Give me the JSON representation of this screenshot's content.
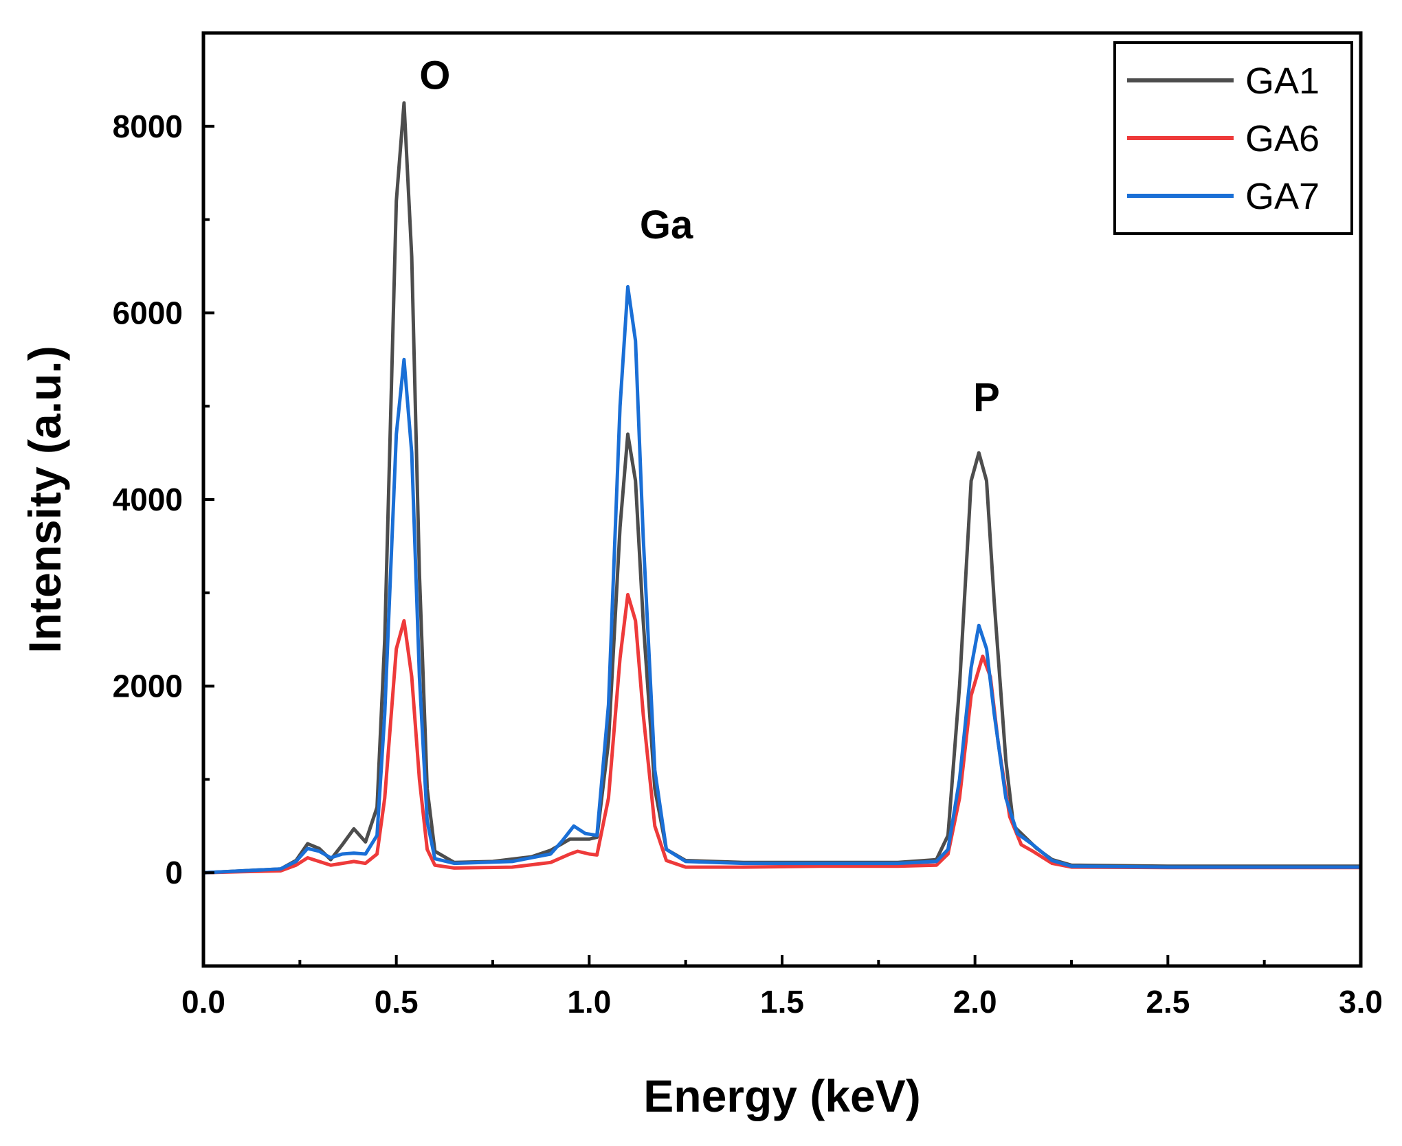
{
  "chart_data": {
    "type": "line",
    "title": "",
    "xlabel": "Energy (keV)",
    "ylabel": "Intensity (a.u.)",
    "xlim": [
      0,
      3.0
    ],
    "ylim": [
      -1000,
      9000
    ],
    "xticks": [
      0.0,
      0.5,
      1.0,
      1.5,
      2.0,
      2.5,
      3.0
    ],
    "xtick_labels": [
      "0.0",
      "0.5",
      "1.0",
      "1.5",
      "2.0",
      "2.5",
      "3.0"
    ],
    "yticks": [
      0,
      2000,
      4000,
      6000,
      8000
    ],
    "ytick_labels": [
      "0",
      "2000",
      "4000",
      "6000",
      "8000"
    ],
    "grid": false,
    "legend": {
      "position": "top-right",
      "entries": [
        "GA1",
        "GA6",
        "GA7"
      ]
    },
    "annotations": [
      {
        "text": "O",
        "x": 0.6,
        "y": 8400
      },
      {
        "text": "Ga",
        "x": 1.2,
        "y": 6800
      },
      {
        "text": "P",
        "x": 2.03,
        "y": 4950
      }
    ],
    "series": [
      {
        "name": "GA1",
        "color": "#4d4d4d",
        "points": [
          [
            0.0,
            0
          ],
          [
            0.1,
            20
          ],
          [
            0.2,
            40
          ],
          [
            0.24,
            130
          ],
          [
            0.27,
            310
          ],
          [
            0.3,
            260
          ],
          [
            0.33,
            140
          ],
          [
            0.36,
            300
          ],
          [
            0.39,
            470
          ],
          [
            0.42,
            330
          ],
          [
            0.45,
            700
          ],
          [
            0.47,
            2500
          ],
          [
            0.5,
            7200
          ],
          [
            0.52,
            8250
          ],
          [
            0.54,
            6600
          ],
          [
            0.56,
            3200
          ],
          [
            0.58,
            900
          ],
          [
            0.6,
            230
          ],
          [
            0.65,
            110
          ],
          [
            0.75,
            120
          ],
          [
            0.85,
            170
          ],
          [
            0.9,
            240
          ],
          [
            0.95,
            360
          ],
          [
            1.0,
            360
          ],
          [
            1.02,
            380
          ],
          [
            1.05,
            1400
          ],
          [
            1.08,
            3700
          ],
          [
            1.1,
            4700
          ],
          [
            1.12,
            4200
          ],
          [
            1.14,
            2700
          ],
          [
            1.17,
            900
          ],
          [
            1.2,
            250
          ],
          [
            1.25,
            130
          ],
          [
            1.4,
            110
          ],
          [
            1.6,
            110
          ],
          [
            1.8,
            110
          ],
          [
            1.9,
            140
          ],
          [
            1.93,
            400
          ],
          [
            1.96,
            2000
          ],
          [
            1.99,
            4200
          ],
          [
            2.01,
            4500
          ],
          [
            2.03,
            4200
          ],
          [
            2.05,
            2900
          ],
          [
            2.08,
            1200
          ],
          [
            2.1,
            500
          ],
          [
            2.13,
            380
          ],
          [
            2.16,
            260
          ],
          [
            2.2,
            140
          ],
          [
            2.25,
            80
          ],
          [
            2.5,
            70
          ],
          [
            2.75,
            70
          ],
          [
            3.0,
            70
          ]
        ]
      },
      {
        "name": "GA6",
        "color": "#ee3a3a",
        "points": [
          [
            0.0,
            0
          ],
          [
            0.1,
            10
          ],
          [
            0.2,
            20
          ],
          [
            0.24,
            80
          ],
          [
            0.27,
            160
          ],
          [
            0.3,
            120
          ],
          [
            0.33,
            80
          ],
          [
            0.36,
            100
          ],
          [
            0.39,
            120
          ],
          [
            0.42,
            100
          ],
          [
            0.45,
            200
          ],
          [
            0.47,
            800
          ],
          [
            0.5,
            2400
          ],
          [
            0.52,
            2700
          ],
          [
            0.54,
            2100
          ],
          [
            0.56,
            1000
          ],
          [
            0.58,
            250
          ],
          [
            0.6,
            80
          ],
          [
            0.65,
            50
          ],
          [
            0.8,
            60
          ],
          [
            0.9,
            110
          ],
          [
            0.95,
            200
          ],
          [
            0.97,
            230
          ],
          [
            1.0,
            200
          ],
          [
            1.02,
            190
          ],
          [
            1.05,
            800
          ],
          [
            1.08,
            2300
          ],
          [
            1.1,
            2980
          ],
          [
            1.12,
            2700
          ],
          [
            1.14,
            1700
          ],
          [
            1.17,
            500
          ],
          [
            1.2,
            130
          ],
          [
            1.25,
            60
          ],
          [
            1.4,
            60
          ],
          [
            1.6,
            70
          ],
          [
            1.8,
            70
          ],
          [
            1.9,
            80
          ],
          [
            1.93,
            200
          ],
          [
            1.96,
            800
          ],
          [
            1.99,
            1900
          ],
          [
            2.02,
            2320
          ],
          [
            2.04,
            2100
          ],
          [
            2.06,
            1400
          ],
          [
            2.09,
            600
          ],
          [
            2.12,
            300
          ],
          [
            2.15,
            230
          ],
          [
            2.2,
            100
          ],
          [
            2.25,
            60
          ],
          [
            2.5,
            55
          ],
          [
            2.75,
            55
          ],
          [
            3.0,
            55
          ]
        ]
      },
      {
        "name": "GA7",
        "color": "#1a6fd6",
        "points": [
          [
            0.0,
            0
          ],
          [
            0.1,
            20
          ],
          [
            0.2,
            40
          ],
          [
            0.24,
            120
          ],
          [
            0.27,
            260
          ],
          [
            0.3,
            230
          ],
          [
            0.33,
            160
          ],
          [
            0.36,
            200
          ],
          [
            0.39,
            210
          ],
          [
            0.42,
            200
          ],
          [
            0.45,
            400
          ],
          [
            0.47,
            1700
          ],
          [
            0.5,
            4700
          ],
          [
            0.52,
            5500
          ],
          [
            0.54,
            4500
          ],
          [
            0.56,
            2100
          ],
          [
            0.58,
            550
          ],
          [
            0.6,
            150
          ],
          [
            0.65,
            100
          ],
          [
            0.8,
            120
          ],
          [
            0.9,
            200
          ],
          [
            0.93,
            340
          ],
          [
            0.96,
            500
          ],
          [
            0.99,
            420
          ],
          [
            1.02,
            400
          ],
          [
            1.05,
            1800
          ],
          [
            1.08,
            5000
          ],
          [
            1.1,
            6280
          ],
          [
            1.12,
            5700
          ],
          [
            1.14,
            3600
          ],
          [
            1.17,
            1100
          ],
          [
            1.2,
            250
          ],
          [
            1.25,
            120
          ],
          [
            1.4,
            100
          ],
          [
            1.6,
            100
          ],
          [
            1.8,
            100
          ],
          [
            1.9,
            120
          ],
          [
            1.93,
            250
          ],
          [
            1.96,
            1000
          ],
          [
            1.99,
            2200
          ],
          [
            2.01,
            2650
          ],
          [
            2.03,
            2400
          ],
          [
            2.05,
            1700
          ],
          [
            2.08,
            800
          ],
          [
            2.11,
            420
          ],
          [
            2.15,
            300
          ],
          [
            2.2,
            130
          ],
          [
            2.25,
            70
          ],
          [
            2.5,
            60
          ],
          [
            2.75,
            60
          ],
          [
            3.0,
            60
          ]
        ]
      }
    ]
  }
}
